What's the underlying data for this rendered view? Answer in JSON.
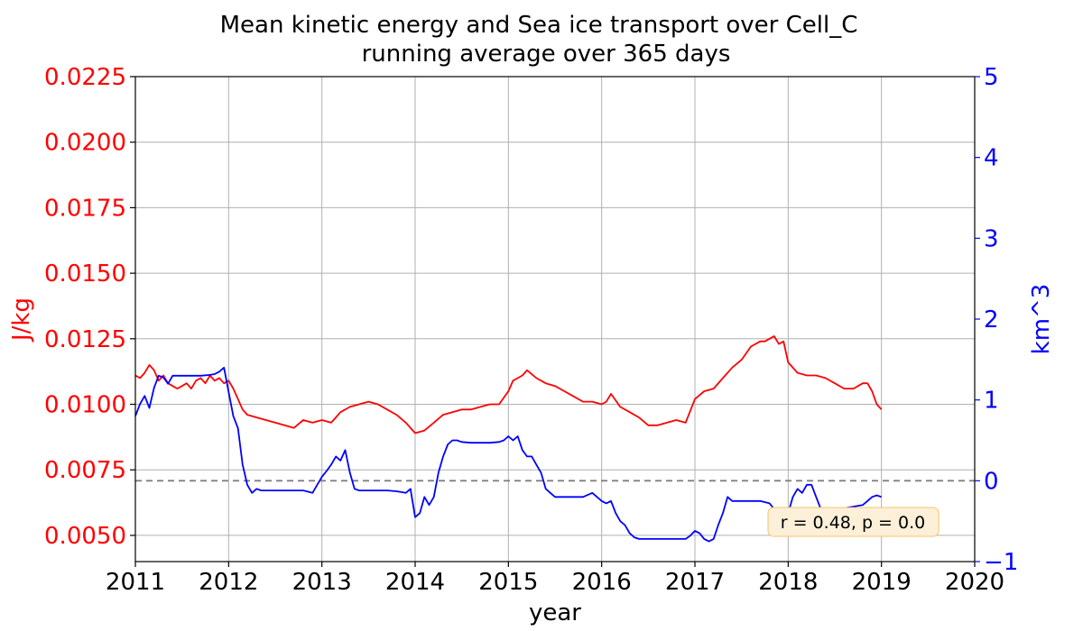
{
  "chart_data": {
    "type": "line",
    "title": "Mean kinetic energy and Sea ice transport over Cell_C",
    "subtitle": "running average over 365 days",
    "xlabel": "year",
    "ylabel_left": "J/kg",
    "ylabel_right": "km^3",
    "xlim": [
      2011,
      2020
    ],
    "ylim_left": [
      0.004,
      0.0225
    ],
    "ylim_right": [
      -1,
      5
    ],
    "x_ticks": [
      "2011",
      "2012",
      "2013",
      "2014",
      "2015",
      "2016",
      "2017",
      "2018",
      "2019",
      "2020"
    ],
    "y_left_ticks": [
      "0.0050",
      "0.0075",
      "0.0100",
      "0.0125",
      "0.0150",
      "0.0175",
      "0.0200",
      "0.0225"
    ],
    "y_right_ticks": [
      "−1",
      "0",
      "1",
      "2",
      "3",
      "4",
      "5"
    ],
    "grid": true,
    "reference_line": {
      "axis": "right",
      "value": 0,
      "style": "dashed"
    },
    "annotation": "r = 0.48, p = 0.0",
    "colors": {
      "left": "#ff0000",
      "right": "#0000ff",
      "grid": "#b0b0b0",
      "reference": "#808080",
      "annot_bg": "#fdf0d8",
      "annot_border": "#f6c46e"
    },
    "series": [
      {
        "axis": "left",
        "color": "#ff0000",
        "x": [
          2011.0,
          2011.05,
          2011.1,
          2011.15,
          2011.2,
          2011.25,
          2011.3,
          2011.35,
          2011.4,
          2011.45,
          2011.5,
          2011.55,
          2011.6,
          2011.65,
          2011.7,
          2011.75,
          2011.8,
          2011.85,
          2011.9,
          2011.95,
          2012.0,
          2012.05,
          2012.1,
          2012.15,
          2012.2,
          2012.3,
          2012.4,
          2012.5,
          2012.6,
          2012.7,
          2012.8,
          2012.9,
          2013.0,
          2013.1,
          2013.2,
          2013.3,
          2013.4,
          2013.5,
          2013.6,
          2013.7,
          2013.8,
          2013.9,
          2014.0,
          2014.1,
          2014.2,
          2014.3,
          2014.4,
          2014.5,
          2014.6,
          2014.7,
          2014.8,
          2014.9,
          2015.0,
          2015.05,
          2015.1,
          2015.15,
          2015.2,
          2015.3,
          2015.4,
          2015.5,
          2015.6,
          2015.7,
          2015.8,
          2015.9,
          2016.0,
          2016.05,
          2016.1,
          2016.2,
          2016.3,
          2016.4,
          2016.5,
          2016.6,
          2016.7,
          2016.8,
          2016.9,
          2017.0,
          2017.1,
          2017.2,
          2017.3,
          2017.4,
          2017.5,
          2017.6,
          2017.7,
          2017.75,
          2017.8,
          2017.85,
          2017.9,
          2017.95,
          2018.0,
          2018.1,
          2018.2,
          2018.3,
          2018.4,
          2018.5,
          2018.6,
          2018.7,
          2018.8,
          2018.85,
          2018.9,
          2018.95,
          2019.0
        ],
        "y": [
          0.0111,
          0.011,
          0.0112,
          0.0115,
          0.0113,
          0.0109,
          0.0111,
          0.0108,
          0.0107,
          0.0106,
          0.0107,
          0.0108,
          0.0106,
          0.0109,
          0.011,
          0.0108,
          0.0111,
          0.0109,
          0.011,
          0.0108,
          0.0109,
          0.0106,
          0.0102,
          0.0098,
          0.0096,
          0.0095,
          0.0094,
          0.0093,
          0.0092,
          0.0091,
          0.0094,
          0.0093,
          0.0094,
          0.0093,
          0.0097,
          0.0099,
          0.01,
          0.0101,
          0.01,
          0.0098,
          0.0096,
          0.0093,
          0.0089,
          0.009,
          0.0093,
          0.0096,
          0.0097,
          0.0098,
          0.0098,
          0.0099,
          0.01,
          0.01,
          0.0105,
          0.0109,
          0.011,
          0.0111,
          0.0113,
          0.011,
          0.0108,
          0.0107,
          0.0105,
          0.0103,
          0.0101,
          0.0101,
          0.01,
          0.0101,
          0.0104,
          0.0099,
          0.0097,
          0.0095,
          0.0092,
          0.0092,
          0.0093,
          0.0094,
          0.0093,
          0.0102,
          0.0105,
          0.0106,
          0.011,
          0.0114,
          0.0117,
          0.0122,
          0.0124,
          0.0124,
          0.0125,
          0.0126,
          0.0123,
          0.0124,
          0.0116,
          0.0112,
          0.0111,
          0.0111,
          0.011,
          0.0108,
          0.0106,
          0.0106,
          0.0108,
          0.0108,
          0.0105,
          0.01,
          0.0098
        ]
      },
      {
        "axis": "right",
        "color": "#0000ff",
        "x": [
          2011.0,
          2011.05,
          2011.1,
          2011.15,
          2011.2,
          2011.25,
          2011.3,
          2011.35,
          2011.4,
          2011.5,
          2011.6,
          2011.7,
          2011.8,
          2011.85,
          2011.9,
          2011.95,
          2012.0,
          2012.05,
          2012.1,
          2012.15,
          2012.2,
          2012.25,
          2012.3,
          2012.35,
          2012.4,
          2012.5,
          2012.6,
          2012.7,
          2012.8,
          2012.9,
          2012.95,
          2013.0,
          2013.05,
          2013.1,
          2013.15,
          2013.2,
          2013.25,
          2013.3,
          2013.35,
          2013.4,
          2013.5,
          2013.6,
          2013.7,
          2013.8,
          2013.9,
          2013.95,
          2014.0,
          2014.05,
          2014.1,
          2014.15,
          2014.2,
          2014.25,
          2014.3,
          2014.35,
          2014.4,
          2014.45,
          2014.5,
          2014.6,
          2014.7,
          2014.8,
          2014.9,
          2014.95,
          2015.0,
          2015.05,
          2015.1,
          2015.15,
          2015.2,
          2015.25,
          2015.3,
          2015.35,
          2015.4,
          2015.45,
          2015.5,
          2015.6,
          2015.7,
          2015.8,
          2015.9,
          2016.0,
          2016.05,
          2016.1,
          2016.15,
          2016.2,
          2016.25,
          2016.3,
          2016.35,
          2016.4,
          2016.5,
          2016.6,
          2016.7,
          2016.8,
          2016.9,
          2016.95,
          2017.0,
          2017.05,
          2017.1,
          2017.15,
          2017.2,
          2017.25,
          2017.3,
          2017.35,
          2017.4,
          2017.5,
          2017.6,
          2017.7,
          2017.8,
          2017.85,
          2017.9,
          2017.95,
          2018.0,
          2018.05,
          2018.1,
          2018.15,
          2018.2,
          2018.25,
          2018.3,
          2018.35,
          2018.4,
          2018.45,
          2018.5,
          2018.6,
          2018.7,
          2018.8,
          2018.85,
          2018.9,
          2018.95,
          2019.0
        ],
        "y": [
          0.8,
          0.95,
          1.05,
          0.9,
          1.15,
          1.3,
          1.28,
          1.2,
          1.3,
          1.3,
          1.3,
          1.3,
          1.31,
          1.32,
          1.35,
          1.4,
          1.1,
          0.8,
          0.65,
          0.2,
          -0.05,
          -0.15,
          -0.1,
          -0.12,
          -0.12,
          -0.12,
          -0.12,
          -0.12,
          -0.12,
          -0.15,
          -0.05,
          0.05,
          0.12,
          0.2,
          0.3,
          0.25,
          0.38,
          0.1,
          -0.1,
          -0.12,
          -0.12,
          -0.12,
          -0.12,
          -0.13,
          -0.15,
          -0.1,
          -0.45,
          -0.4,
          -0.2,
          -0.3,
          -0.2,
          0.1,
          0.3,
          0.45,
          0.5,
          0.5,
          0.48,
          0.47,
          0.47,
          0.47,
          0.48,
          0.5,
          0.55,
          0.5,
          0.55,
          0.38,
          0.3,
          0.3,
          0.2,
          0.1,
          -0.1,
          -0.15,
          -0.2,
          -0.2,
          -0.2,
          -0.2,
          -0.15,
          -0.25,
          -0.28,
          -0.25,
          -0.4,
          -0.5,
          -0.55,
          -0.65,
          -0.7,
          -0.72,
          -0.72,
          -0.72,
          -0.72,
          -0.72,
          -0.72,
          -0.68,
          -0.62,
          -0.65,
          -0.72,
          -0.75,
          -0.72,
          -0.55,
          -0.4,
          -0.2,
          -0.25,
          -0.25,
          -0.25,
          -0.25,
          -0.28,
          -0.35,
          -0.4,
          -0.45,
          -0.4,
          -0.2,
          -0.1,
          -0.15,
          -0.05,
          -0.05,
          -0.2,
          -0.35,
          -0.35,
          -0.35,
          -0.35,
          -0.34,
          -0.32,
          -0.3,
          -0.25,
          -0.2,
          -0.18,
          -0.2
        ]
      }
    ]
  }
}
